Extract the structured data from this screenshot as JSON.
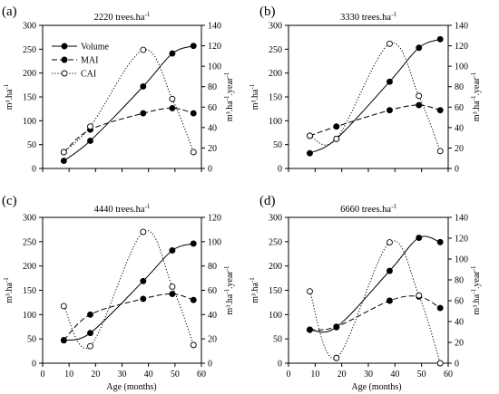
{
  "figure": {
    "shared_xlabel": "Age (months)",
    "legend": {
      "placement": "top-left",
      "entries": [
        {
          "label": "Volume",
          "style": "solid-filled"
        },
        {
          "label": "MAI",
          "style": "dashed-filled"
        },
        {
          "label": "CAI",
          "style": "dotted-open"
        }
      ]
    }
  },
  "chart_data": [
    {
      "type": "line",
      "panel_label": "(a)",
      "title": "2220 trees.ha",
      "title_sup": "-1",
      "left_axis": {
        "label": "m³.ha",
        "label_sup": "-1",
        "ylim": [
          0,
          300
        ],
        "ticks": [
          0,
          50,
          100,
          150,
          200,
          250,
          300
        ]
      },
      "right_axis": {
        "label": "m³.ha",
        "label_sup": "-1",
        "label_tail": ".year",
        "label_tail_sup": "-1",
        "ylim": [
          0,
          140
        ],
        "ticks": [
          0,
          20,
          40,
          60,
          80,
          100,
          120,
          140
        ]
      },
      "x_axis": {
        "xlim": [
          0,
          60
        ],
        "ticks": [
          0,
          10,
          20,
          30,
          40,
          50,
          60
        ],
        "show_tick_labels": false,
        "xlabel": ""
      },
      "x": [
        8,
        18,
        38,
        49,
        57
      ],
      "series": [
        {
          "name": "Volume",
          "axis": "left",
          "values": [
            16,
            58,
            172,
            241,
            257
          ]
        },
        {
          "name": "MAI",
          "axis": "right",
          "values": [
            16,
            38,
            54,
            59,
            54
          ]
        },
        {
          "name": "CAI",
          "axis": "right",
          "values": [
            16,
            41,
            116,
            68,
            16
          ]
        }
      ]
    },
    {
      "type": "line",
      "panel_label": "(b)",
      "title": "3330 trees.ha",
      "title_sup": "-1",
      "left_axis": {
        "label": "m³.ha",
        "label_sup": "-1",
        "ylim": [
          0,
          300
        ],
        "ticks": [
          0,
          50,
          100,
          150,
          200,
          250,
          300
        ]
      },
      "right_axis": {
        "label": "m³.ha",
        "label_sup": "-1",
        "label_tail": ".year",
        "label_tail_sup": "-1",
        "ylim": [
          0,
          140
        ],
        "ticks": [
          0,
          20,
          40,
          60,
          80,
          100,
          120,
          140
        ]
      },
      "x_axis": {
        "xlim": [
          0,
          60
        ],
        "ticks": [
          0,
          10,
          20,
          30,
          40,
          50,
          60
        ],
        "show_tick_labels": false,
        "xlabel": ""
      },
      "x": [
        8,
        18,
        38,
        49,
        57
      ],
      "series": [
        {
          "name": "Volume",
          "axis": "left",
          "values": [
            32,
            62,
            182,
            253,
            271
          ]
        },
        {
          "name": "MAI",
          "axis": "right",
          "values": [
            32,
            41,
            57,
            62,
            57
          ]
        },
        {
          "name": "CAI",
          "axis": "right",
          "values": [
            32,
            29,
            122,
            71,
            17
          ]
        }
      ]
    },
    {
      "type": "line",
      "panel_label": "(c)",
      "title": "4440 trees.ha",
      "title_sup": "-1",
      "left_axis": {
        "label": "m³.ha",
        "label_sup": "-1",
        "ylim": [
          0,
          300
        ],
        "ticks": [
          0,
          50,
          100,
          150,
          200,
          250,
          300
        ]
      },
      "right_axis": {
        "label": "m³.ha",
        "label_sup": "-1",
        "label_tail": ".year",
        "label_tail_sup": "-1",
        "ylim": [
          0,
          120
        ],
        "ticks": [
          0,
          20,
          40,
          60,
          80,
          100,
          120
        ]
      },
      "x_axis": {
        "xlim": [
          0,
          60
        ],
        "ticks": [
          0,
          10,
          20,
          30,
          40,
          50,
          60
        ],
        "show_tick_labels": true,
        "xlabel": ""
      },
      "x": [
        8,
        18,
        38,
        49,
        57
      ],
      "series": [
        {
          "name": "Volume",
          "axis": "left",
          "values": [
            47,
            62,
            169,
            232,
            246
          ]
        },
        {
          "name": "MAI",
          "axis": "right",
          "values": [
            19,
            40,
            53,
            57,
            52
          ]
        },
        {
          "name": "CAI",
          "axis": "right",
          "values": [
            47,
            14,
            108,
            63,
            15
          ]
        }
      ]
    },
    {
      "type": "line",
      "panel_label": "(d)",
      "title": "6660 trees.ha",
      "title_sup": "-1",
      "left_axis": {
        "label": "m³.ha",
        "label_sup": "-1",
        "ylim": [
          0,
          300
        ],
        "ticks": [
          0,
          50,
          100,
          150,
          200,
          250,
          300
        ]
      },
      "right_axis": {
        "label": "m³.ha",
        "label_sup": "-1",
        "label_tail": ".year",
        "label_tail_sup": "-1",
        "ylim": [
          0,
          140
        ],
        "ticks": [
          0,
          20,
          40,
          60,
          80,
          100,
          120,
          140
        ]
      },
      "x_axis": {
        "xlim": [
          0,
          60
        ],
        "ticks": [
          0,
          10,
          20,
          30,
          40,
          50,
          60
        ],
        "show_tick_labels": true,
        "xlabel": ""
      },
      "x": [
        8,
        18,
        38,
        49,
        57
      ],
      "series": [
        {
          "name": "Volume",
          "axis": "left",
          "values": [
            69,
            74,
            190,
            258,
            249
          ]
        },
        {
          "name": "MAI",
          "axis": "right",
          "values": [
            32,
            35,
            60,
            64,
            53
          ]
        },
        {
          "name": "CAI",
          "axis": "right",
          "values": [
            69,
            5,
            116,
            65,
            0
          ]
        }
      ]
    }
  ]
}
